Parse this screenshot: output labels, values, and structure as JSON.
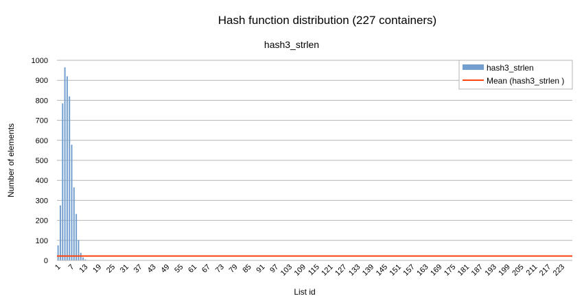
{
  "chart_data": {
    "type": "bar",
    "title": "Hash function distribution (227 containers)",
    "subtitle": "hash3_strlen",
    "xlabel": "List id",
    "ylabel": "Number of elements",
    "ylim": [
      0,
      1000
    ],
    "yticks": [
      0,
      100,
      200,
      300,
      400,
      500,
      600,
      700,
      800,
      900,
      1000
    ],
    "x_count": 227,
    "x_tick_start": 1,
    "x_tick_step": 6,
    "grid": true,
    "legend_position": "top-right",
    "series": [
      {
        "name": "hash3_strlen",
        "type": "bar",
        "color": "#729fcf",
        "values": [
          75,
          275,
          785,
          965,
          920,
          820,
          578,
          365,
          232,
          102,
          38,
          15,
          5,
          2,
          1
        ]
      },
      {
        "name": "Mean (hash3_strlen )",
        "type": "line",
        "color": "#ff420e",
        "value": 22
      }
    ]
  }
}
